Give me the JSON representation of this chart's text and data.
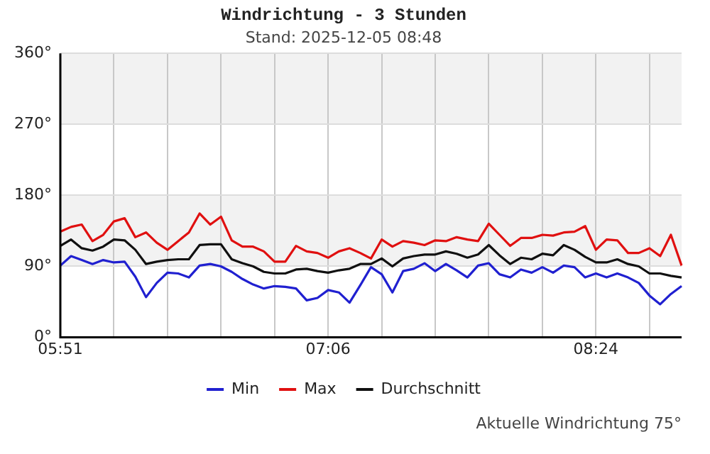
{
  "chart_data": {
    "type": "line",
    "title": "Windrichtung - 3 Stunden",
    "subtitle": "Stand: 2025-12-05 08:48",
    "categories": [
      "05:51",
      null,
      null,
      null,
      null,
      null,
      null,
      null,
      null,
      null,
      null,
      null,
      null,
      null,
      null,
      null,
      null,
      null,
      null,
      null,
      null,
      null,
      null,
      null,
      null,
      "07:06",
      null,
      null,
      null,
      null,
      null,
      null,
      null,
      null,
      null,
      null,
      null,
      null,
      null,
      null,
      null,
      null,
      null,
      null,
      null,
      null,
      null,
      null,
      null,
      null,
      "08:24",
      null,
      null,
      null,
      null,
      null,
      null,
      null,
      null
    ],
    "series": [
      {
        "name": "Min",
        "color": "#2020d0",
        "values": [
          91,
          103,
          98,
          93,
          98,
          95,
          96,
          77,
          51,
          69,
          82,
          81,
          76,
          91,
          93,
          90,
          83,
          74,
          67,
          62,
          65,
          64,
          62,
          47,
          50,
          60,
          57,
          44,
          66,
          89,
          80,
          57,
          84,
          87,
          94,
          84,
          93,
          85,
          76,
          91,
          94,
          80,
          76,
          86,
          82,
          89,
          82,
          91,
          89,
          76,
          81,
          76,
          81,
          76,
          69,
          53,
          42,
          55,
          65
        ]
      },
      {
        "name": "Max",
        "color": "#e01010",
        "values": [
          134,
          140,
          143,
          122,
          130,
          147,
          151,
          127,
          133,
          120,
          111,
          122,
          133,
          157,
          143,
          153,
          123,
          115,
          115,
          109,
          96,
          96,
          116,
          109,
          107,
          101,
          109,
          113,
          107,
          100,
          124,
          115,
          122,
          120,
          117,
          123,
          122,
          127,
          124,
          122,
          144,
          130,
          116,
          126,
          126,
          130,
          129,
          133,
          134,
          141,
          111,
          124,
          123,
          107,
          107,
          113,
          103,
          130,
          91
        ]
      },
      {
        "name": "Durchschnitt",
        "color": "#101010",
        "values": [
          116,
          124,
          113,
          110,
          115,
          124,
          123,
          111,
          93,
          96,
          98,
          99,
          99,
          117,
          118,
          118,
          99,
          94,
          90,
          83,
          81,
          81,
          86,
          87,
          84,
          82,
          85,
          87,
          93,
          93,
          100,
          90,
          100,
          103,
          105,
          105,
          109,
          106,
          101,
          105,
          117,
          104,
          93,
          101,
          99,
          106,
          104,
          117,
          111,
          102,
          95,
          95,
          99,
          93,
          90,
          81,
          81,
          78,
          76
        ]
      }
    ],
    "ylim": [
      0,
      360
    ],
    "yticks": [
      {
        "value": 0,
        "label": "0°"
      },
      {
        "value": 90,
        "label": "90°"
      },
      {
        "value": 180,
        "label": "180°"
      },
      {
        "value": 270,
        "label": "270°"
      },
      {
        "value": 360,
        "label": "360°"
      }
    ],
    "bands": [
      {
        "axis": "y",
        "from": 90,
        "to": 180,
        "color": "#f2f2f2"
      },
      {
        "axis": "y",
        "from": 270,
        "to": 360,
        "color": "#f2f2f2"
      }
    ],
    "grid": true,
    "legend": "bottom",
    "marker": "none",
    "line_style": "solid",
    "annotations": [
      "Aktuelle Windrichtung 75°"
    ]
  }
}
